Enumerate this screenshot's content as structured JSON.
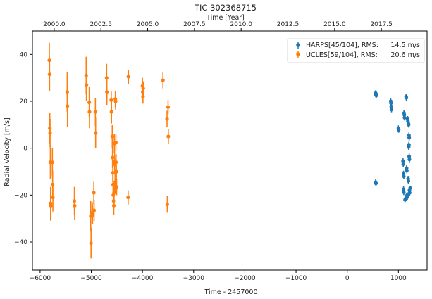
{
  "chart_data": {
    "type": "scatter",
    "title": "TIC 302368715",
    "xlabel": "Time - 2457000",
    "ylabel": "Radial Velocity [m/s]",
    "top_xlabel": "Time [Year]",
    "xlim": [
      -6150,
      1560
    ],
    "ylim": [
      -52,
      50
    ],
    "xticks": [
      -6000,
      -5000,
      -4000,
      -3000,
      -2000,
      -1000,
      0,
      1000
    ],
    "yticks": [
      -40,
      -20,
      0,
      20,
      40
    ],
    "top_xticks": [
      "2000.0",
      "2002.5",
      "2005.0",
      "2007.5",
      "2010.0",
      "2012.5",
      "2015.0",
      "2017.5"
    ],
    "top_xtick_values": [
      -5724.5,
      -4811.4,
      -3898.3,
      -2985.2,
      -2072.1,
      -1159.0,
      -245.9,
      667.2
    ],
    "grid": false,
    "legend_position": "top-right",
    "series": [
      {
        "name": "HARPS[45/104], RMS:",
        "rms": "14.5 m/s",
        "color": "#1f77b4",
        "points": [
          [
            555,
            23.5,
            1.2
          ],
          [
            560,
            22.8,
            1.2
          ],
          [
            565,
            23.0,
            1.2
          ],
          [
            568,
            22.5,
            1.0
          ],
          [
            555,
            -14.5,
            1.2
          ],
          [
            560,
            -15.0,
            1.2
          ],
          [
            565,
            -14.8,
            1.0
          ],
          [
            850,
            20.0,
            1.2
          ],
          [
            855,
            19.2,
            1.2
          ],
          [
            860,
            17.8,
            1.2
          ],
          [
            865,
            16.5,
            1.2
          ],
          [
            1000,
            8.5,
            1.2
          ],
          [
            1005,
            7.8,
            1.2
          ],
          [
            1090,
            -5.5,
            1.2
          ],
          [
            1095,
            -6.8,
            1.2
          ],
          [
            1100,
            -10.8,
            1.2
          ],
          [
            1105,
            -12.0,
            1.2
          ],
          [
            1100,
            -17.5,
            1.2
          ],
          [
            1105,
            -18.8,
            1.2
          ],
          [
            1110,
            15.0,
            1.2
          ],
          [
            1115,
            14.2,
            1.2
          ],
          [
            1120,
            13.0,
            1.2
          ],
          [
            1150,
            22.0,
            1.2
          ],
          [
            1155,
            21.5,
            1.2
          ],
          [
            1160,
            -8.5,
            1.2
          ],
          [
            1165,
            -9.5,
            1.2
          ],
          [
            1170,
            -20.0,
            1.2
          ],
          [
            1175,
            -20.8,
            1.2
          ],
          [
            1180,
            12.5,
            1.2
          ],
          [
            1185,
            11.5,
            1.2
          ],
          [
            1195,
            10.5,
            1.2
          ],
          [
            1200,
            10.0,
            1.2
          ],
          [
            1205,
            5.5,
            1.2
          ],
          [
            1210,
            4.5,
            1.2
          ],
          [
            1200,
            0.5,
            1.2
          ],
          [
            1205,
            1.5,
            1.2
          ],
          [
            1210,
            -3.5,
            1.2
          ],
          [
            1215,
            -4.8,
            1.2
          ],
          [
            1190,
            -13.0,
            1.2
          ],
          [
            1195,
            -14.0,
            1.2
          ],
          [
            1215,
            -18.0,
            1.2
          ],
          [
            1220,
            -19.0,
            1.2
          ],
          [
            1130,
            -22.0,
            1.0
          ],
          [
            1140,
            -21.5,
            1.0
          ],
          [
            1230,
            -17.0,
            1.0
          ]
        ]
      },
      {
        "name": "UCLES[59/104], RMS:",
        "rms": "20.6 m/s",
        "color": "#ff7f0e",
        "points": [
          [
            -5820,
            37.5,
            7.5
          ],
          [
            -5815,
            31.5,
            7.0
          ],
          [
            -5810,
            8.5,
            6.5
          ],
          [
            -5805,
            6.5,
            6.0
          ],
          [
            -5800,
            -6.0,
            7.0
          ],
          [
            -5795,
            -23.5,
            7.0
          ],
          [
            -5790,
            -24.5,
            6.5
          ],
          [
            -5760,
            -6.0,
            6.0
          ],
          [
            -5755,
            -15.5,
            6.0
          ],
          [
            -5750,
            -21.0,
            6.0
          ],
          [
            -5470,
            24.0,
            8.5
          ],
          [
            -5465,
            18.0,
            9.0
          ],
          [
            -5330,
            -22.5,
            6.0
          ],
          [
            -5325,
            -24.5,
            6.0
          ],
          [
            -5100,
            31.0,
            8.0
          ],
          [
            -5095,
            27.0,
            7.0
          ],
          [
            -5040,
            19.5,
            6.5
          ],
          [
            -5035,
            15.5,
            7.0
          ],
          [
            -5010,
            -29.0,
            6.5
          ],
          [
            -5005,
            -40.5,
            6.5
          ],
          [
            -4980,
            -27.5,
            4.5
          ],
          [
            -4975,
            -28.5,
            4.0
          ],
          [
            -4950,
            -19.0,
            5.0
          ],
          [
            -4945,
            -26.5,
            4.5
          ],
          [
            -4920,
            15.5,
            6.0
          ],
          [
            -4915,
            6.5,
            6.5
          ],
          [
            -4700,
            30.0,
            6.0
          ],
          [
            -4695,
            24.0,
            5.5
          ],
          [
            -4610,
            20.5,
            4.0
          ],
          [
            -4605,
            15.5,
            5.0
          ],
          [
            -4590,
            5.0,
            5.0
          ],
          [
            -4585,
            -4.0,
            4.5
          ],
          [
            -4580,
            -10.5,
            4.0
          ],
          [
            -4575,
            -15.5,
            5.0
          ],
          [
            -4570,
            -20.0,
            4.5
          ],
          [
            -4565,
            -22.5,
            4.0
          ],
          [
            -4560,
            -24.5,
            4.0
          ],
          [
            -4555,
            -19.0,
            5.0
          ],
          [
            -4550,
            2.0,
            4.0
          ],
          [
            -4545,
            -5.5,
            4.5
          ],
          [
            -4540,
            -7.0,
            4.0
          ],
          [
            -4535,
            -14.5,
            4.5
          ],
          [
            -4530,
            21.0,
            3.5
          ],
          [
            -4525,
            20.0,
            3.5
          ],
          [
            -4520,
            2.5,
            3.5
          ],
          [
            -4515,
            -6.0,
            3.5
          ],
          [
            -4510,
            -10.0,
            3.0
          ],
          [
            -4505,
            -16.5,
            3.5
          ],
          [
            -4280,
            -21.0,
            3.0
          ],
          [
            -4275,
            30.5,
            3.0
          ],
          [
            -4000,
            26.5,
            3.5
          ],
          [
            -3995,
            24.0,
            3.5
          ],
          [
            -3990,
            22.0,
            3.0
          ],
          [
            -3985,
            25.5,
            3.0
          ],
          [
            -3600,
            29.0,
            3.5
          ],
          [
            -3520,
            12.5,
            3.5
          ],
          [
            -3515,
            -24.0,
            3.5
          ],
          [
            -3500,
            17.5,
            3.0
          ],
          [
            -3495,
            5.0,
            3.0
          ]
        ]
      }
    ]
  }
}
